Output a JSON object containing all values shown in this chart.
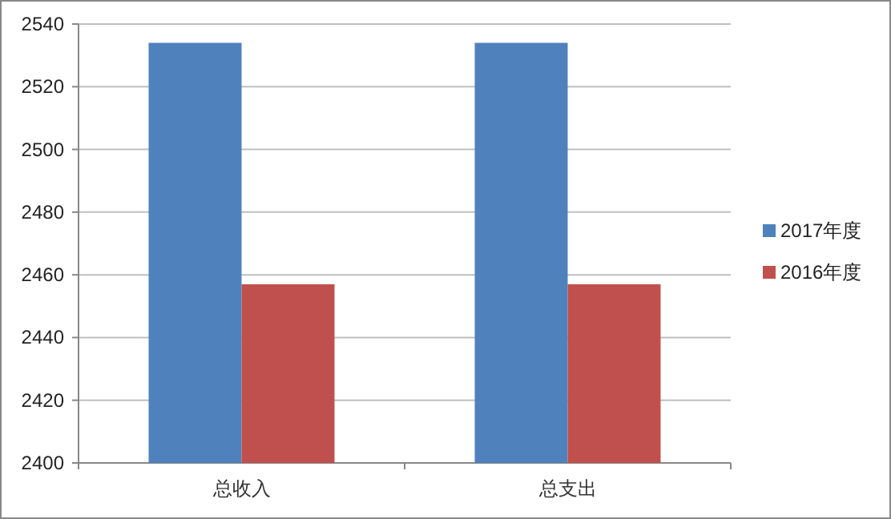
{
  "chart_data": {
    "type": "bar",
    "categories": [
      "总收入",
      "总支出"
    ],
    "series": [
      {
        "name": "2017年度",
        "color": "#4f81bd",
        "values": [
          2534,
          2534
        ]
      },
      {
        "name": "2016年度",
        "color": "#c0504d",
        "values": [
          2457,
          2457
        ]
      }
    ],
    "ylim": [
      2400,
      2540
    ],
    "yticks": [
      2400,
      2420,
      2440,
      2460,
      2480,
      2500,
      2520,
      2540
    ],
    "grid": "y",
    "legend": "right"
  }
}
